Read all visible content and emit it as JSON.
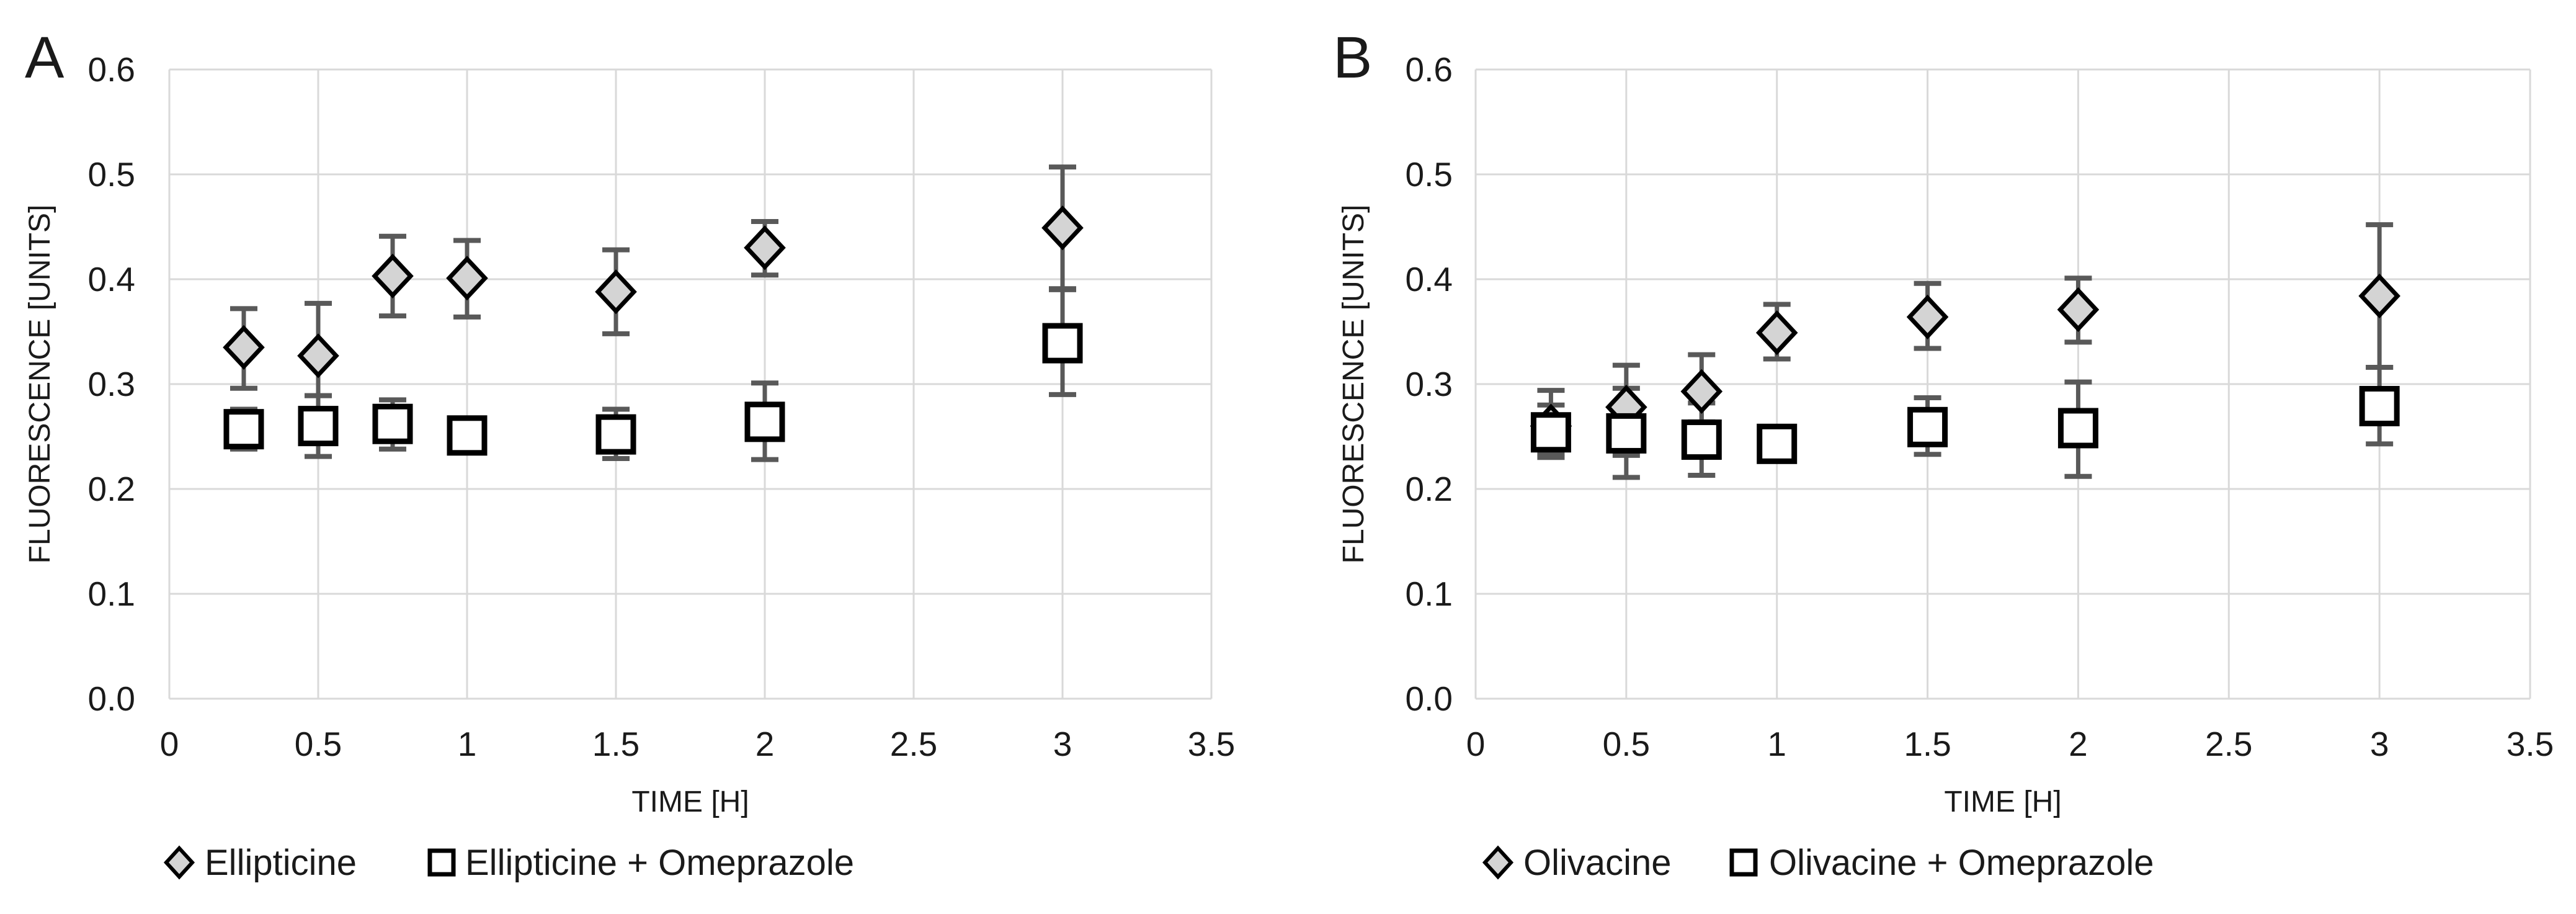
{
  "figure": {
    "background": "#ffffff",
    "colors": {
      "gridline": "#d9d9d9",
      "error_bar": "#595959",
      "diamond_fill": "#d4d4d4",
      "marker_stroke": "#000000",
      "square_fill": "#ffffff",
      "text": "#1a1a1a"
    },
    "panels": [
      {
        "letter": "A",
        "y_axis_title": "FLUORESCENCE [UNITS]",
        "x_axis_title": "TIME [H]",
        "y_tick_labels": [
          "0.0",
          "0.1",
          "0.2",
          "0.3",
          "0.4",
          "0.5",
          "0.6"
        ],
        "x_tick_labels": [
          "0",
          "0.5",
          "1",
          "1.5",
          "2",
          "2.5",
          "3",
          "3.5"
        ],
        "legend": [
          {
            "label": "Ellipticine",
            "marker": "diamond"
          },
          {
            "label": "Ellipticine + Omeprazole",
            "marker": "square"
          }
        ]
      },
      {
        "letter": "B",
        "y_axis_title": "FLUORESCENCE [UNITS]",
        "x_axis_title": "TIME [H]",
        "y_tick_labels": [
          "0.0",
          "0.1",
          "0.2",
          "0.3",
          "0.4",
          "0.5",
          "0.6"
        ],
        "x_tick_labels": [
          "0",
          "0.5",
          "1",
          "1.5",
          "2",
          "2.5",
          "3",
          "3.5"
        ],
        "legend": [
          {
            "label": "Olivacine",
            "marker": "diamond"
          },
          {
            "label": "Olivacine + Omeprazole",
            "marker": "square"
          }
        ]
      }
    ]
  },
  "chart_data": [
    {
      "panel": "A",
      "type": "scatter",
      "title": "",
      "xlabel": "TIME [H]",
      "ylabel": "FLUORESCENCE [UNITS]",
      "xlim": [
        0,
        3.5
      ],
      "ylim": [
        0,
        0.6
      ],
      "x_ticks": [
        0,
        0.5,
        1,
        1.5,
        2,
        2.5,
        3,
        3.5
      ],
      "y_ticks": [
        0,
        0.1,
        0.2,
        0.3,
        0.4,
        0.5,
        0.6
      ],
      "grid": true,
      "legend_position": "bottom",
      "x": [
        0.25,
        0.5,
        0.75,
        1,
        1.5,
        2,
        3
      ],
      "series": [
        {
          "name": "Ellipticine",
          "marker": "diamond",
          "y": [
            0.335,
            0.327,
            0.403,
            0.401,
            0.388,
            0.43,
            0.449
          ],
          "err_up": [
            0.037,
            0.05,
            0.038,
            0.036,
            0.04,
            0.025,
            0.058
          ],
          "err_down": [
            0.039,
            0.038,
            0.038,
            0.037,
            0.04,
            0.026,
            0.058
          ]
        },
        {
          "name": "Ellipticine + Omeprazole",
          "marker": "square",
          "y": [
            0.257,
            0.26,
            0.262,
            0.251,
            0.252,
            0.264,
            0.339
          ],
          "err_up": [
            0.019,
            0.029,
            0.023,
            0,
            0.024,
            0.037,
            0.051
          ],
          "err_down": [
            0.019,
            0.029,
            0.024,
            0,
            0.023,
            0.036,
            0.049
          ]
        }
      ]
    },
    {
      "panel": "B",
      "type": "scatter",
      "title": "",
      "xlabel": "TIME [H]",
      "ylabel": "FLUORESCENCE [UNITS]",
      "xlim": [
        0,
        3.5
      ],
      "ylim": [
        0,
        0.6
      ],
      "x_ticks": [
        0,
        0.5,
        1,
        1.5,
        2,
        2.5,
        3,
        3.5
      ],
      "y_ticks": [
        0,
        0.1,
        0.2,
        0.3,
        0.4,
        0.5,
        0.6
      ],
      "grid": true,
      "legend_position": "bottom",
      "x": [
        0.25,
        0.5,
        0.75,
        1,
        1.5,
        2,
        3
      ],
      "series": [
        {
          "name": "Olivacine",
          "marker": "diamond",
          "y": [
            0.26,
            0.278,
            0.293,
            0.349,
            0.364,
            0.371,
            0.384
          ],
          "err_up": [
            0.034,
            0.04,
            0.035,
            0.027,
            0.032,
            0.03,
            0.068
          ],
          "err_down": [
            0.03,
            0.046,
            0.029,
            0.025,
            0.03,
            0.031,
            0.068
          ]
        },
        {
          "name": "Olivacine + Omeprazole",
          "marker": "square",
          "y": [
            0.254,
            0.253,
            0.247,
            0.243,
            0.259,
            0.258,
            0.279
          ],
          "err_up": [
            0.026,
            0.043,
            0.035,
            0,
            0.028,
            0.044,
            0.037
          ],
          "err_down": [
            0.02,
            0.042,
            0.034,
            0,
            0.026,
            0.046,
            0.036
          ]
        }
      ]
    }
  ]
}
